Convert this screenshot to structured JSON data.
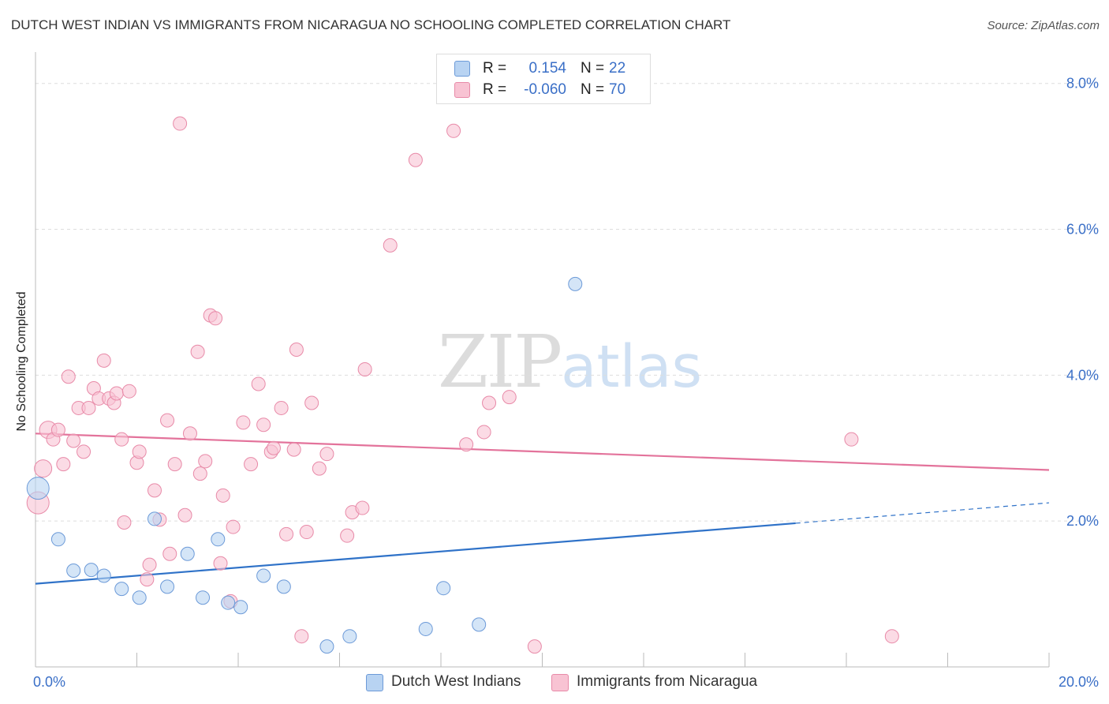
{
  "header": {
    "title": "DUTCH WEST INDIAN VS IMMIGRANTS FROM NICARAGUA NO SCHOOLING COMPLETED CORRELATION CHART",
    "source": "Source: ZipAtlas.com"
  },
  "watermark": {
    "zip": "ZIP",
    "atlas": "atlas"
  },
  "legend_top": {
    "rows": [
      {
        "r_label": "R =",
        "r_value": "0.154",
        "n_label": "N =",
        "n_value": "22"
      },
      {
        "r_label": "R =",
        "r_value": "-0.060",
        "n_label": "N =",
        "n_value": "70"
      }
    ]
  },
  "legend_bottom": {
    "items": [
      {
        "label": "Dutch West Indians"
      },
      {
        "label": "Immigrants from Nicaragua"
      }
    ]
  },
  "colors": {
    "blue_fill": "#b8d3f2",
    "blue_stroke": "#6c9ad8",
    "blue_line": "#2f72c8",
    "pink_fill": "#f8c3d3",
    "pink_stroke": "#e88aa8",
    "pink_line": "#e3739b",
    "tick_text": "#3a6fc7",
    "grid": "#dddddd"
  },
  "chart_data": {
    "type": "scatter",
    "title": "DUTCH WEST INDIAN VS IMMIGRANTS FROM NICARAGUA NO SCHOOLING COMPLETED CORRELATION CHART",
    "xlabel": "",
    "ylabel": "No Schooling Completed",
    "xlim": [
      0,
      20
    ],
    "ylim": [
      0,
      8.3
    ],
    "x_tick_labels": [
      {
        "value": 0,
        "label": "0.0%"
      },
      {
        "value": 20,
        "label": "20.0%"
      }
    ],
    "y_tick_labels": [
      {
        "value": 2,
        "label": "2.0%"
      },
      {
        "value": 4,
        "label": "4.0%"
      },
      {
        "value": 6,
        "label": "6.0%"
      },
      {
        "value": 8,
        "label": "8.0%"
      }
    ],
    "grid": true,
    "legend_position": "bottom",
    "series": [
      {
        "name": "Dutch West Indians",
        "r": 0.154,
        "n": 22,
        "trend": {
          "x": [
            0,
            15
          ],
          "y": [
            1.14,
            1.97
          ],
          "dashed_to": {
            "x": 20,
            "y": 2.25
          }
        },
        "points": [
          {
            "x": 0.05,
            "y": 2.45,
            "size": "large"
          },
          {
            "x": 0.45,
            "y": 1.75
          },
          {
            "x": 0.75,
            "y": 1.32
          },
          {
            "x": 1.1,
            "y": 1.33
          },
          {
            "x": 1.35,
            "y": 1.25
          },
          {
            "x": 1.7,
            "y": 1.07
          },
          {
            "x": 2.05,
            "y": 0.95
          },
          {
            "x": 2.35,
            "y": 2.03
          },
          {
            "x": 2.6,
            "y": 1.1
          },
          {
            "x": 3.0,
            "y": 1.55
          },
          {
            "x": 3.3,
            "y": 0.95
          },
          {
            "x": 3.6,
            "y": 1.75
          },
          {
            "x": 3.8,
            "y": 0.88
          },
          {
            "x": 4.05,
            "y": 0.82
          },
          {
            "x": 4.5,
            "y": 1.25
          },
          {
            "x": 4.9,
            "y": 1.1
          },
          {
            "x": 5.75,
            "y": 0.28
          },
          {
            "x": 6.2,
            "y": 0.42
          },
          {
            "x": 7.7,
            "y": 0.52
          },
          {
            "x": 8.05,
            "y": 1.08
          },
          {
            "x": 8.75,
            "y": 0.58
          },
          {
            "x": 10.65,
            "y": 5.25
          }
        ]
      },
      {
        "name": "Immigrants from Nicaragua",
        "r": -0.06,
        "n": 70,
        "trend": {
          "x": [
            0,
            20
          ],
          "y": [
            3.2,
            2.7
          ]
        },
        "points": [
          {
            "x": 0.05,
            "y": 2.25,
            "size": "large"
          },
          {
            "x": 0.15,
            "y": 2.72,
            "size": "medium"
          },
          {
            "x": 0.25,
            "y": 3.25,
            "size": "medium"
          },
          {
            "x": 0.35,
            "y": 3.12
          },
          {
            "x": 0.45,
            "y": 3.25
          },
          {
            "x": 0.55,
            "y": 2.78
          },
          {
            "x": 0.65,
            "y": 3.98
          },
          {
            "x": 0.75,
            "y": 3.1
          },
          {
            "x": 0.85,
            "y": 3.55
          },
          {
            "x": 0.95,
            "y": 2.95
          },
          {
            "x": 1.05,
            "y": 3.55
          },
          {
            "x": 1.15,
            "y": 3.82
          },
          {
            "x": 1.25,
            "y": 3.68
          },
          {
            "x": 1.35,
            "y": 4.2
          },
          {
            "x": 1.45,
            "y": 3.68
          },
          {
            "x": 1.55,
            "y": 3.62
          },
          {
            "x": 1.6,
            "y": 3.75
          },
          {
            "x": 1.7,
            "y": 3.12
          },
          {
            "x": 1.75,
            "y": 1.98
          },
          {
            "x": 1.85,
            "y": 3.78
          },
          {
            "x": 2.0,
            "y": 2.8
          },
          {
            "x": 2.05,
            "y": 2.95
          },
          {
            "x": 2.2,
            "y": 1.2
          },
          {
            "x": 2.25,
            "y": 1.4
          },
          {
            "x": 2.35,
            "y": 2.42
          },
          {
            "x": 2.45,
            "y": 2.02
          },
          {
            "x": 2.6,
            "y": 3.38
          },
          {
            "x": 2.65,
            "y": 1.55
          },
          {
            "x": 2.75,
            "y": 2.78
          },
          {
            "x": 2.85,
            "y": 7.45
          },
          {
            "x": 2.95,
            "y": 2.08
          },
          {
            "x": 3.05,
            "y": 3.2
          },
          {
            "x": 3.2,
            "y": 4.32
          },
          {
            "x": 3.25,
            "y": 2.65
          },
          {
            "x": 3.35,
            "y": 2.82
          },
          {
            "x": 3.45,
            "y": 4.82
          },
          {
            "x": 3.55,
            "y": 4.78
          },
          {
            "x": 3.65,
            "y": 1.42
          },
          {
            "x": 3.7,
            "y": 2.35
          },
          {
            "x": 3.85,
            "y": 0.9
          },
          {
            "x": 3.9,
            "y": 1.92
          },
          {
            "x": 4.1,
            "y": 3.35
          },
          {
            "x": 4.25,
            "y": 2.78
          },
          {
            "x": 4.4,
            "y": 3.88
          },
          {
            "x": 4.5,
            "y": 3.32
          },
          {
            "x": 4.65,
            "y": 2.95
          },
          {
            "x": 4.7,
            "y": 3.0
          },
          {
            "x": 4.85,
            "y": 3.55
          },
          {
            "x": 4.95,
            "y": 1.82
          },
          {
            "x": 5.1,
            "y": 2.98
          },
          {
            "x": 5.15,
            "y": 4.35
          },
          {
            "x": 5.25,
            "y": 0.42
          },
          {
            "x": 5.35,
            "y": 1.85
          },
          {
            "x": 5.45,
            "y": 3.62
          },
          {
            "x": 5.6,
            "y": 2.72
          },
          {
            "x": 5.75,
            "y": 2.92
          },
          {
            "x": 6.15,
            "y": 1.8
          },
          {
            "x": 6.25,
            "y": 2.12
          },
          {
            "x": 6.45,
            "y": 2.18
          },
          {
            "x": 6.5,
            "y": 4.08
          },
          {
            "x": 7.0,
            "y": 5.78
          },
          {
            "x": 7.5,
            "y": 6.95
          },
          {
            "x": 8.25,
            "y": 7.35
          },
          {
            "x": 8.5,
            "y": 3.05
          },
          {
            "x": 8.85,
            "y": 3.22
          },
          {
            "x": 8.95,
            "y": 3.62
          },
          {
            "x": 9.35,
            "y": 3.7
          },
          {
            "x": 9.85,
            "y": 0.28
          },
          {
            "x": 16.1,
            "y": 3.12
          },
          {
            "x": 16.9,
            "y": 0.42
          }
        ]
      }
    ]
  }
}
